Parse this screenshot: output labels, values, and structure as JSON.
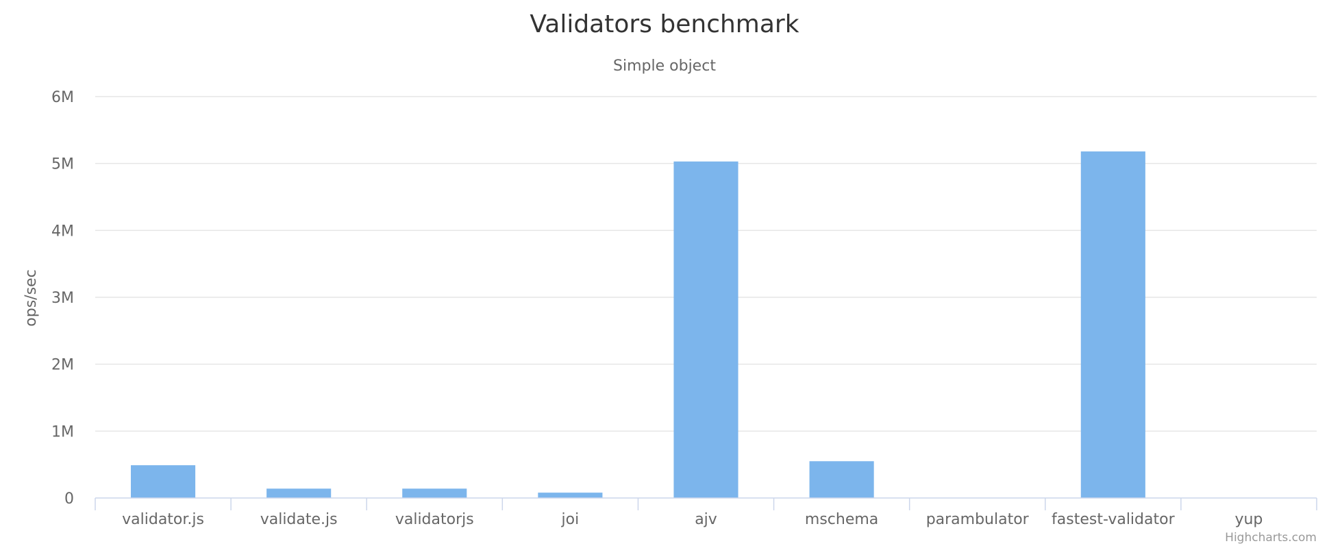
{
  "chart_data": {
    "type": "bar",
    "title": "Validators benchmark",
    "subtitle": "Simple object",
    "ylabel": "ops/sec",
    "xlabel": "",
    "categories": [
      "validator.js",
      "validate.js",
      "validatorjs",
      "joi",
      "ajv",
      "mschema",
      "parambulator",
      "fastest-validator",
      "yup"
    ],
    "values": [
      490000,
      140000,
      140000,
      80000,
      5030000,
      550000,
      0,
      5180000,
      0
    ],
    "ylim": [
      0,
      6000000
    ],
    "yticks": [
      0,
      1000000,
      2000000,
      3000000,
      4000000,
      5000000,
      6000000
    ],
    "ytick_labels": [
      "0",
      "1M",
      "2M",
      "3M",
      "4M",
      "5M",
      "6M"
    ],
    "grid": true,
    "legend": "none",
    "colors": {
      "bar": "#7cb5ec"
    }
  },
  "credits": "Highcharts.com"
}
